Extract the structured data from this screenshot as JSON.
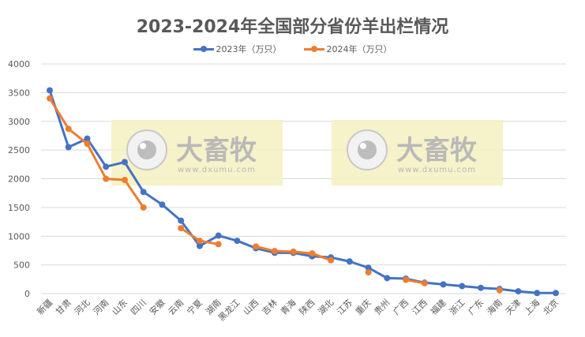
{
  "chart_data": {
    "type": "line",
    "title": "2023-2024年全国部分省份羊出栏情况",
    "xlabel": "",
    "ylabel": "",
    "ylim": [
      0,
      4000
    ],
    "yticks": [
      0,
      500,
      1000,
      1500,
      2000,
      2500,
      3000,
      3500,
      4000
    ],
    "grid": true,
    "legend_position": "top",
    "categories": [
      "新疆",
      "甘肃",
      "河北",
      "河南",
      "山东",
      "四川",
      "安徽",
      "云南",
      "宁夏",
      "湖南",
      "黑龙江",
      "山西",
      "吉林",
      "青海",
      "陕西",
      "湖北",
      "江苏",
      "重庆",
      "贵州",
      "广西",
      "江西",
      "福建",
      "浙江",
      "广东",
      "海南",
      "天津",
      "上海",
      "北京"
    ],
    "series": [
      {
        "name": "2023年（万只）",
        "color": "#4472C4",
        "values": [
          3540,
          2550,
          2700,
          2210,
          2290,
          1770,
          1550,
          1270,
          830,
          1010,
          920,
          790,
          710,
          710,
          650,
          630,
          560,
          450,
          270,
          260,
          190,
          160,
          130,
          100,
          80,
          40,
          10,
          10
        ]
      },
      {
        "name": "2024年（万只）",
        "color": "#ED7D31",
        "values": [
          3400,
          2870,
          2610,
          2000,
          1980,
          1500,
          null,
          1140,
          920,
          860,
          null,
          820,
          740,
          730,
          700,
          580,
          null,
          370,
          null,
          240,
          180,
          null,
          null,
          null,
          60,
          null,
          null,
          null
        ]
      }
    ]
  },
  "watermark": {
    "brand": "大畜牧",
    "url": "www.dxumu.com",
    "bg_color": "#F5F0C0"
  }
}
